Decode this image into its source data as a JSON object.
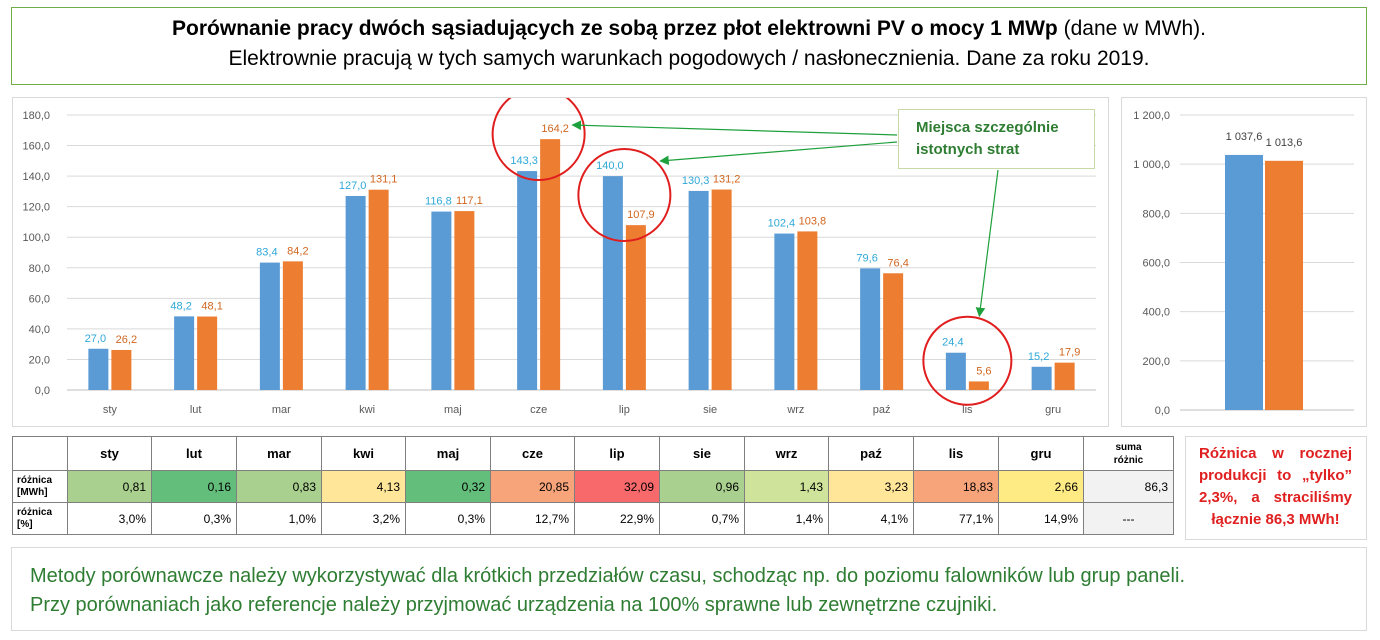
{
  "title": {
    "bold": "Porównanie pracy dwóch sąsiadujących ze sobą przez płot elektrowni PV o mocy 1 MWp",
    "normal": " (dane w MWh).",
    "line2": "Elektrownie pracują w tych samych warunkach pogodowych / nasłonecznienia. Dane za roku 2019."
  },
  "chart_data": [
    {
      "type": "bar",
      "categories": [
        "sty",
        "lut",
        "mar",
        "kwi",
        "maj",
        "cze",
        "lip",
        "sie",
        "wrz",
        "paź",
        "lis",
        "gru"
      ],
      "series": [
        {
          "values": [
            27.0,
            48.2,
            83.4,
            127.0,
            116.8,
            143.3,
            140.0,
            130.3,
            102.4,
            79.6,
            24.4,
            15.2
          ],
          "color": "#5b9bd5",
          "labelColor": "#2ea8d8"
        },
        {
          "values": [
            26.2,
            48.1,
            84.2,
            131.1,
            117.1,
            164.2,
            107.9,
            131.2,
            103.8,
            76.4,
            5.6,
            17.9
          ],
          "color": "#ed7d31",
          "labelColor": "#d1661f"
        }
      ],
      "value_labels": [
        [
          "27,0",
          "48,2",
          "83,4",
          "127,0",
          "116,8",
          "143,3",
          "140,0",
          "130,3",
          "102,4",
          "79,6",
          "24,4",
          "15,2"
        ],
        [
          "26,2",
          "48,1",
          "84,2",
          "131,1",
          "117,1",
          "164,2",
          "107,9",
          "131,2",
          "103,8",
          "76,4",
          "5,6",
          "17,9"
        ]
      ],
      "ylim": [
        0,
        180
      ],
      "yticks": [
        "0,0",
        "20,0",
        "40,0",
        "60,0",
        "80,0",
        "100,0",
        "120,0",
        "140,0",
        "160,0",
        "180,0"
      ],
      "grid": true,
      "highlighted_months": [
        "cze",
        "lip",
        "lis"
      ]
    },
    {
      "type": "bar",
      "categories": [
        ""
      ],
      "series": [
        {
          "values": [
            1037.6
          ],
          "color": "#5b9bd5"
        },
        {
          "values": [
            1013.6
          ],
          "color": "#ed7d31"
        }
      ],
      "value_labels": [
        "1 037,6",
        "1 013,6"
      ],
      "ylim": [
        0,
        1200
      ],
      "yticks": [
        "0,0",
        "200,0",
        "400,0",
        "600,0",
        "800,0",
        "1 000,0",
        "1 200,0"
      ],
      "grid": true
    }
  ],
  "annotation": {
    "line1": "Miejsca szczególnie",
    "line2": "istotnych strat"
  },
  "table": {
    "headers": [
      "sty",
      "lut",
      "mar",
      "kwi",
      "maj",
      "cze",
      "lip",
      "sie",
      "wrz",
      "paź",
      "lis",
      "gru"
    ],
    "sum_header": [
      "suma",
      "różnic"
    ],
    "row_mwh": {
      "label": [
        "różnica",
        "[MWh]"
      ],
      "values": [
        "0,81",
        "0,16",
        "0,83",
        "4,13",
        "0,32",
        "20,85",
        "32,09",
        "0,96",
        "1,43",
        "3,23",
        "18,83",
        "2,66"
      ],
      "colors": [
        "#a9d08e",
        "#63be7b",
        "#a9d08e",
        "#ffe699",
        "#63be7b",
        "#f8a47a",
        "#f8696b",
        "#a9d08e",
        "#cfe39a",
        "#ffe699",
        "#f8a47a",
        "#ffeb84"
      ],
      "sum": "86,3"
    },
    "row_pct": {
      "label": [
        "różnica",
        "[%]"
      ],
      "values": [
        "3,0%",
        "0,3%",
        "1,0%",
        "3,2%",
        "0,3%",
        "12,7%",
        "22,9%",
        "0,7%",
        "1,4%",
        "4,1%",
        "77,1%",
        "14,9%"
      ],
      "sum": "---"
    }
  },
  "side_note": "Różnica w rocznej produkcji to „tylko” 2,3%, a straciliśmy łącznie 86,3 MWh!",
  "bottom_text": {
    "line1": "Metody porównawcze należy wykorzystywać dla krótkich przedziałów czasu, schodząc np. do poziomu falowników lub grup paneli.",
    "line2": "Przy porównaniach jako referencje należy przyjmować urządzenia na 100% sprawne lub zewnętrzne czujniki."
  }
}
